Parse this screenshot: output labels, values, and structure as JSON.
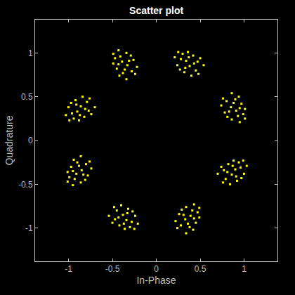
{
  "chart_data": {
    "type": "scatter",
    "title": "Scatter plot",
    "x_label": "In-Phase",
    "y_label": "Quadrature",
    "color": "#ffff00",
    "marker": "square",
    "grid": false,
    "xlim": [
      -1.38,
      1.38
    ],
    "ylim": [
      -1.38,
      1.38
    ],
    "xticks": [
      -1,
      -0.5,
      0,
      0.5,
      1
    ],
    "yticks": [
      -1,
      -0.5,
      0,
      0.5,
      1
    ],
    "x": [
      0.38,
      0.28,
      0.47,
      0.32,
      0.42,
      0.24,
      0.36,
      0.45,
      0.3,
      0.5,
      0.21,
      0.4,
      0.34,
      0.43,
      0.27,
      0.48,
      0.33,
      0.37,
      0.25,
      0.54,
      0.85,
      0.93,
      0.9,
      0.78,
      0.97,
      0.86,
      1.01,
      0.8,
      0.99,
      0.94,
      0.95,
      0.74,
      0.91,
      0.88,
      0.81,
      0.76,
      0.83,
      0.95,
      1.01,
      0.86,
      0.86,
      0.96,
      0.77,
      0.92,
      0.82,
      1.0,
      0.88,
      0.79,
      0.94,
      0.74,
      1.03,
      0.84,
      0.9,
      0.81,
      0.97,
      0.76,
      0.91,
      0.87,
      0.99,
      0.7,
      0.33,
      0.41,
      0.38,
      0.26,
      0.45,
      0.34,
      0.49,
      0.28,
      0.47,
      0.42,
      0.43,
      0.22,
      0.39,
      0.36,
      0.29,
      0.24,
      0.31,
      0.43,
      0.49,
      0.34,
      -0.38,
      -0.28,
      -0.47,
      -0.32,
      -0.42,
      -0.24,
      -0.36,
      -0.45,
      -0.3,
      -0.5,
      -0.21,
      -0.4,
      -0.34,
      -0.43,
      -0.27,
      -0.48,
      -0.33,
      -0.37,
      -0.25,
      -0.54,
      -0.85,
      -0.93,
      -0.9,
      -0.78,
      -0.97,
      -0.86,
      -1.01,
      -0.8,
      -0.99,
      -0.94,
      -0.95,
      -0.74,
      -0.91,
      -0.88,
      -0.81,
      -0.76,
      -0.83,
      -0.95,
      -1.01,
      -0.86,
      -0.86,
      -0.96,
      -0.77,
      -0.92,
      -0.82,
      -1.0,
      -0.88,
      -0.79,
      -0.94,
      -0.74,
      -1.03,
      -0.84,
      -0.9,
      -0.81,
      -0.97,
      -0.76,
      -0.91,
      -0.87,
      -0.99,
      -0.7,
      -0.33,
      -0.41,
      -0.38,
      -0.26,
      -0.45,
      -0.34,
      -0.49,
      -0.28,
      -0.47,
      -0.42,
      -0.43,
      -0.22,
      -0.39,
      -0.36,
      -0.29,
      -0.24,
      -0.31,
      -0.43,
      -0.49,
      -0.34
    ],
    "values": [
      0.85,
      0.93,
      0.9,
      0.78,
      0.97,
      0.86,
      1.01,
      0.8,
      0.99,
      0.94,
      0.95,
      0.74,
      0.91,
      0.88,
      0.81,
      0.76,
      0.83,
      0.95,
      1.01,
      0.86,
      0.38,
      0.28,
      0.47,
      0.32,
      0.42,
      0.24,
      0.36,
      0.45,
      0.3,
      0.5,
      0.21,
      0.4,
      0.34,
      0.43,
      0.27,
      0.48,
      0.33,
      0.37,
      0.25,
      0.54,
      -0.39,
      -0.31,
      -0.34,
      -0.46,
      -0.27,
      -0.38,
      -0.23,
      -0.44,
      -0.25,
      -0.3,
      -0.29,
      -0.5,
      -0.33,
      -0.36,
      -0.43,
      -0.48,
      -0.41,
      -0.29,
      -0.23,
      -0.38,
      -0.9,
      -0.8,
      -0.99,
      -0.84,
      -0.94,
      -0.76,
      -0.88,
      -0.97,
      -0.82,
      -1.02,
      -0.73,
      -0.92,
      -0.86,
      -0.95,
      -0.79,
      -1.0,
      -0.85,
      -0.89,
      -0.77,
      -1.06,
      -0.85,
      -0.93,
      -0.9,
      -0.78,
      -0.97,
      -0.86,
      -1.01,
      -0.8,
      -0.99,
      -0.94,
      -0.95,
      -0.74,
      -0.91,
      -0.88,
      -0.81,
      -0.76,
      -0.83,
      -0.95,
      -1.01,
      -0.86,
      -0.34,
      -0.44,
      -0.25,
      -0.4,
      -0.3,
      -0.48,
      -0.36,
      -0.27,
      -0.42,
      -0.22,
      -0.51,
      -0.32,
      -0.38,
      -0.29,
      -0.45,
      -0.24,
      -0.39,
      -0.35,
      -0.47,
      -0.18,
      0.39,
      0.31,
      0.34,
      0.46,
      0.27,
      0.38,
      0.23,
      0.44,
      0.25,
      0.3,
      0.29,
      0.5,
      0.33,
      0.36,
      0.43,
      0.48,
      0.41,
      0.29,
      0.23,
      0.38,
      0.86,
      0.96,
      0.77,
      0.92,
      0.82,
      1.0,
      0.88,
      0.79,
      0.94,
      0.74,
      1.03,
      0.84,
      0.9,
      0.81,
      0.97,
      0.76,
      0.91,
      0.87,
      0.99,
      0.7
    ]
  }
}
